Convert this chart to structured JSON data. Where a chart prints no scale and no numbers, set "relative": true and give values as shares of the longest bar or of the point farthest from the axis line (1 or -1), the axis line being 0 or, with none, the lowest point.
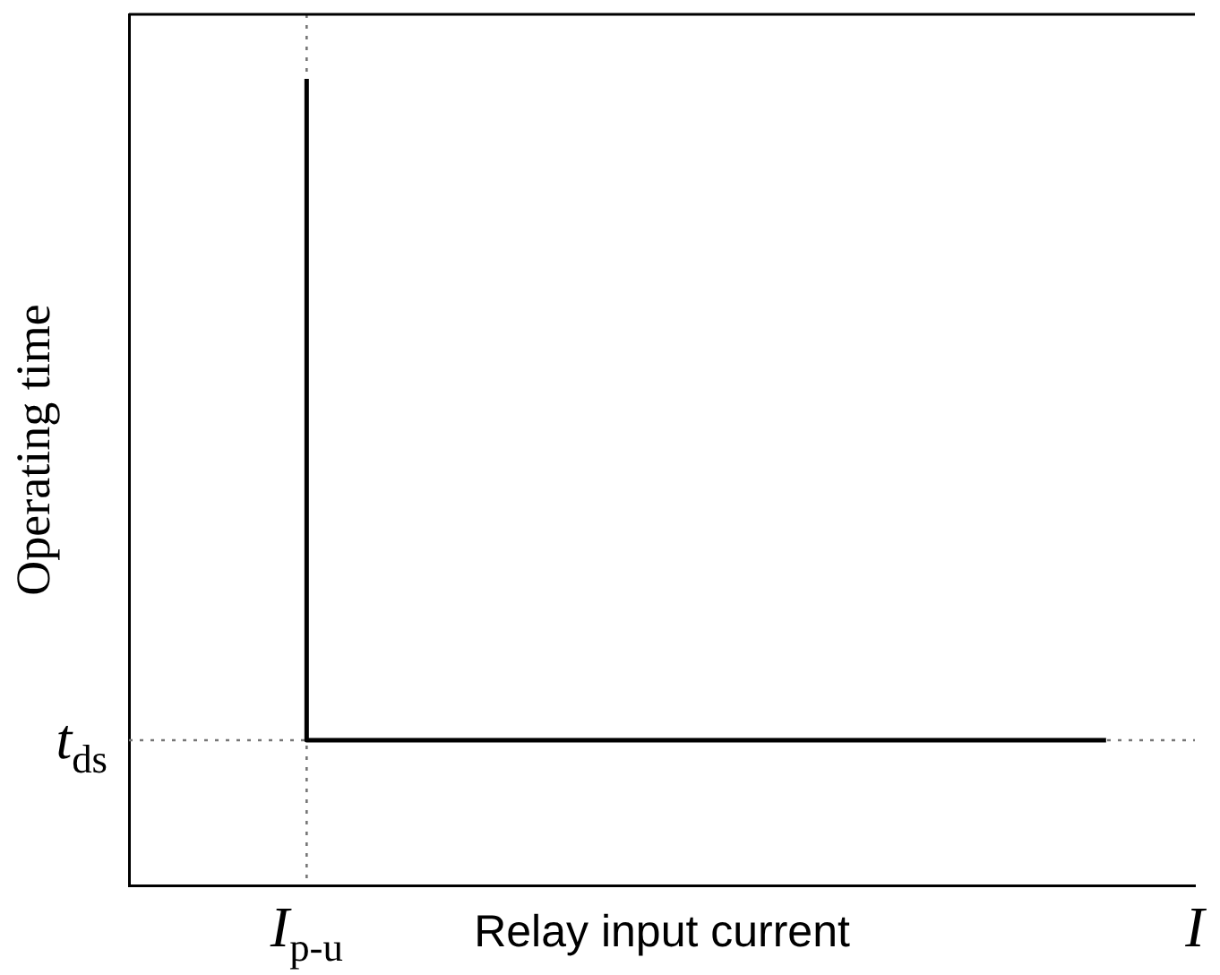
{
  "chart_data": {
    "type": "step",
    "relative": true,
    "xlabel": "Relay input current",
    "ylabel": "Operating time",
    "categories": [
      null,
      null,
      "I$_{p-u}$",
      null,
      null,
      null,
      null,
      null,
      null,
      null,
      null,
      null,
      "I"
    ],
    "series": [
      {
        "color": "#000000",
        "values": [
          null,
          null,
          1,
          0.18,
          0.18,
          0.18,
          0.18,
          0.18,
          0.18,
          0.18,
          0.18,
          0.18,
          null
        ]
      }
    ],
    "ref_lines": [
      {
        "axis": "x",
        "value": "I$_{p-u}$",
        "line_style": "dotted",
        "color": "#777777"
      },
      {
        "axis": "y",
        "value": 0.18,
        "label": "t$_{ds}$",
        "line_style": "dotted",
        "color": "#777777"
      }
    ],
    "marker": "none",
    "line_style": "solid",
    "grid": false,
    "legend": false
  }
}
